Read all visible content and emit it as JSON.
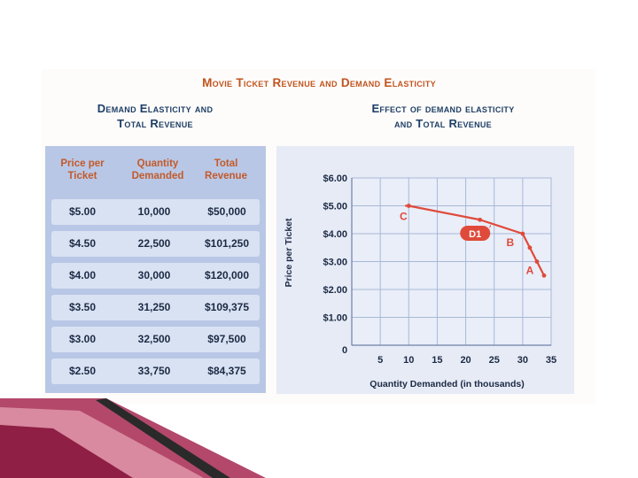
{
  "main_title": "Movie Ticket Revenue and Demand Elasticity",
  "left_title": [
    "Demand Elasticity and",
    "Total Revenue"
  ],
  "right_title": [
    "Effect of demand elasticity",
    "and Total Revenue"
  ],
  "table": {
    "headers": [
      [
        "Price per",
        "Ticket"
      ],
      [
        "Quantity",
        "Demanded"
      ],
      [
        "Total",
        "Revenue"
      ]
    ],
    "rows": [
      [
        "$5.00",
        "10,000",
        "$50,000"
      ],
      [
        "$4.50",
        "22,500",
        "$101,250"
      ],
      [
        "$4.00",
        "30,000",
        "$120,000"
      ],
      [
        "$3.50",
        "31,250",
        "$109,375"
      ],
      [
        "$3.00",
        "32,500",
        "$97,500"
      ],
      [
        "$2.50",
        "33,750",
        "$84,375"
      ]
    ]
  },
  "colors": {
    "title": "#c1541f",
    "subtitle": "#1e3e66",
    "curve": "#e04a3a",
    "grid": "#a9b8d8",
    "chart_bg": "#e6ebf6",
    "table_bg": "#b9c7e6",
    "row_bg": "#d9e2f3",
    "header_text": "#c25a2a",
    "decor": "#9c2a4e"
  },
  "chart_data": {
    "type": "line",
    "xlabel": "Quantity Demanded (in thousands)",
    "ylabel": "Price per Ticket",
    "x_ticks": [
      "0",
      "5",
      "10",
      "15",
      "20",
      "25",
      "30",
      "35"
    ],
    "y_ticks": [
      "$1.00",
      "$2.00",
      "$3.00",
      "$4.00",
      "$5.00",
      "$6.00"
    ],
    "xlim": [
      0,
      35
    ],
    "ylim": [
      0,
      6
    ],
    "grid": true,
    "series": [
      {
        "name": "D1",
        "x": [
          10,
          22.5,
          30,
          31.25,
          32.5,
          33.75
        ],
        "y": [
          5.0,
          4.5,
          4.0,
          3.5,
          3.0,
          2.5
        ]
      }
    ],
    "point_labels": [
      {
        "text": "C",
        "x": 10,
        "y": 5.0
      },
      {
        "text": "B",
        "x": 30,
        "y": 4.0
      },
      {
        "text": "A",
        "x": 32.5,
        "y": 3.0
      }
    ],
    "curve_label": "D1"
  }
}
